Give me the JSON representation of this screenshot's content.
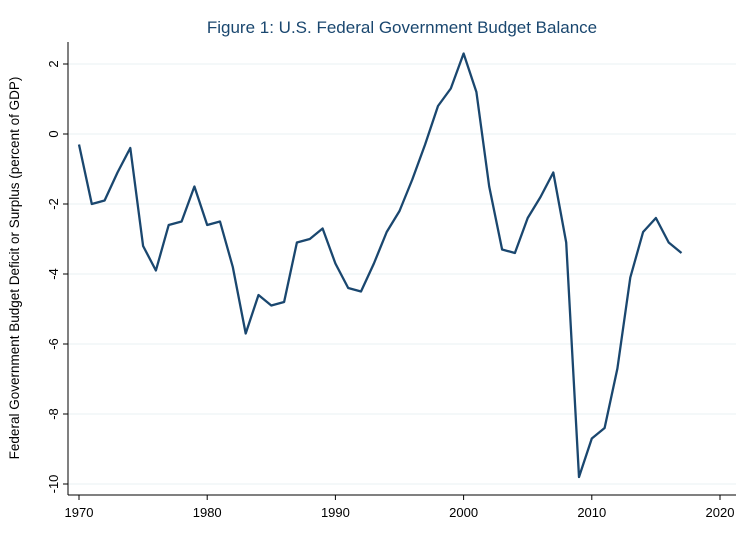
{
  "chart_data": {
    "type": "line",
    "title": "Figure 1: U.S. Federal Government Budget Balance",
    "xlabel": "",
    "ylabel": "Federal Government Budget Deficit or Surplus (percent of GDP)",
    "xlim": [
      1970,
      2020
    ],
    "ylim": [
      -10,
      2
    ],
    "xticks": [
      1970,
      1980,
      1990,
      2000,
      2010,
      2020
    ],
    "yticks": [
      -10,
      -8,
      -6,
      -4,
      -2,
      0,
      2
    ],
    "grid": true,
    "line_color": "#1a476f",
    "x": [
      1970,
      1971,
      1972,
      1973,
      1974,
      1975,
      1976,
      1977,
      1978,
      1979,
      1980,
      1981,
      1982,
      1983,
      1984,
      1985,
      1986,
      1987,
      1988,
      1989,
      1990,
      1991,
      1992,
      1993,
      1994,
      1995,
      1996,
      1997,
      1998,
      1999,
      2000,
      2001,
      2002,
      2003,
      2004,
      2005,
      2006,
      2007,
      2008,
      2009,
      2010,
      2011,
      2012,
      2013,
      2014,
      2015,
      2016,
      2017
    ],
    "values": [
      -0.3,
      -2.0,
      -1.9,
      -1.1,
      -0.4,
      -3.2,
      -3.9,
      -2.6,
      -2.5,
      -1.5,
      -2.6,
      -2.5,
      -3.8,
      -5.7,
      -4.6,
      -4.9,
      -4.8,
      -3.1,
      -3.0,
      -2.7,
      -3.7,
      -4.4,
      -4.5,
      -3.7,
      -2.8,
      -2.2,
      -1.3,
      -0.3,
      0.8,
      1.3,
      2.3,
      1.2,
      -1.5,
      -3.3,
      -3.4,
      -2.4,
      -1.8,
      -1.1,
      -3.1,
      -9.8,
      -8.7,
      -8.4,
      -6.7,
      -4.1,
      -2.8,
      -2.4,
      -3.1,
      -3.4
    ]
  }
}
